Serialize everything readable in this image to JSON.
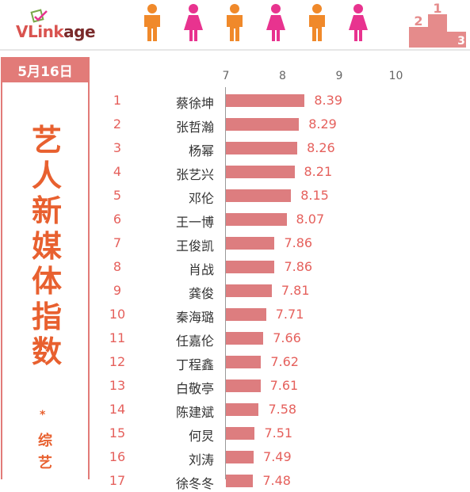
{
  "brand": {
    "logo_text_a": "VLink",
    "logo_text_b": "age"
  },
  "header": {
    "date": "5月16日"
  },
  "side": {
    "title_chars": [
      "艺",
      "人",
      "新",
      "媒",
      "体",
      "指",
      "数"
    ],
    "asterisk": "*",
    "subtitle_chars": [
      "综",
      "艺"
    ]
  },
  "colors": {
    "accent": "#e27b78",
    "title": "#e8602f",
    "bar": "#dd7d7f",
    "male_icon": "#f0892a",
    "female_icon": "#e8338f",
    "podium": "#e58b8b"
  },
  "icons": [
    "male-figure-icon",
    "female-figure-icon",
    "male-figure-icon",
    "female-figure-icon",
    "male-figure-icon",
    "female-figure-icon",
    "podium-icon"
  ],
  "chart_data": {
    "type": "bar",
    "orientation": "horizontal",
    "x_ticks": [
      7,
      8,
      9,
      10
    ],
    "xlim": [
      7,
      10
    ],
    "categories": [
      "蔡徐坤",
      "张哲瀚",
      "杨幂",
      "张艺兴",
      "邓伦",
      "王一博",
      "王俊凯",
      "肖战",
      "龚俊",
      "秦海璐",
      "任嘉伦",
      "丁程鑫",
      "白敬亭",
      "陈建斌",
      "何炅",
      "刘涛",
      "徐冬冬"
    ],
    "ranks": [
      1,
      2,
      3,
      4,
      5,
      6,
      7,
      8,
      9,
      10,
      11,
      12,
      13,
      14,
      15,
      16,
      17
    ],
    "values": [
      8.39,
      8.29,
      8.26,
      8.21,
      8.15,
      8.07,
      7.86,
      7.86,
      7.81,
      7.71,
      7.66,
      7.62,
      7.61,
      7.58,
      7.51,
      7.49,
      7.48
    ]
  }
}
